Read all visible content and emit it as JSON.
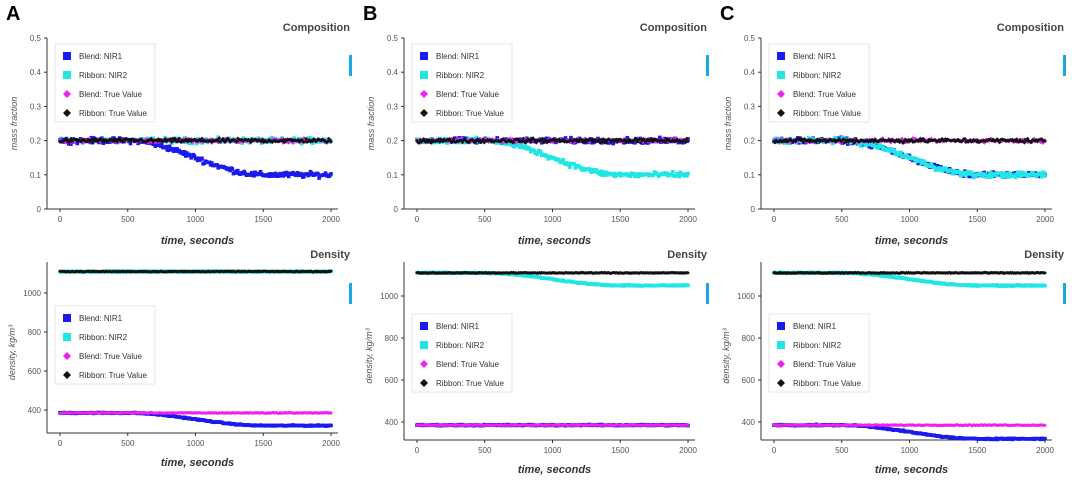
{
  "panels": [
    {
      "letter": "A",
      "composition_variant": "blend_drop",
      "density_variant": "blend_drop"
    },
    {
      "letter": "B",
      "composition_variant": "ribbon_drop",
      "density_variant": "ribbon_drop"
    },
    {
      "letter": "C",
      "composition_variant": "both_drop",
      "density_variant": "both_drop"
    }
  ],
  "legend_labels": [
    "Blend: NIR1",
    "Ribbon: NIR2",
    "Blend: True Value",
    "Ribbon: True Value"
  ],
  "colors": {
    "blend_nir": "#1a1aee",
    "ribbon_nir": "#22e5e5",
    "blend_true": "#ee22ee",
    "ribbon_true": "#111111",
    "side_bar": "#1aa7e6",
    "axis": "#333333"
  },
  "chart_data": [
    {
      "type": "scatter",
      "title": "Composition",
      "xlabel": "time, seconds",
      "ylabel": "mass fraction",
      "xlim": [
        0,
        2000
      ],
      "ylim": [
        0,
        0.5
      ],
      "x_ticks": [
        "0",
        "500",
        "1000",
        "1500",
        "2000"
      ],
      "y_ticks": [
        "0",
        "0.1",
        "0.2",
        "0.3",
        "0.4",
        "0.5"
      ],
      "series": [
        {
          "name": "Blend: NIR1",
          "profile": [
            [
              0,
              0.2
            ],
            [
              500,
              0.2
            ],
            [
              1500,
              0.1
            ],
            [
              2000,
              0.1
            ]
          ]
        },
        {
          "name": "Ribbon: NIR2",
          "profile": [
            [
              0,
              0.2
            ],
            [
              500,
              0.2
            ],
            [
              1500,
              0.1
            ],
            [
              2000,
              0.1
            ]
          ]
        },
        {
          "name": "Blend: True Value",
          "profile": [
            [
              0,
              0.2
            ],
            [
              2000,
              0.2
            ]
          ]
        },
        {
          "name": "Ribbon: True Value",
          "profile": [
            [
              0,
              0.2
            ],
            [
              2000,
              0.2
            ]
          ]
        }
      ]
    },
    {
      "type": "scatter",
      "title": "Density",
      "xlabel": "time, seconds",
      "ylabel": "density, kg/m³",
      "xlim": [
        0,
        2000
      ],
      "x_ticks": [
        "0",
        "500",
        "1000",
        "1500",
        "2000"
      ],
      "y_ticks_A": [
        "400",
        "600",
        "800",
        "1000"
      ],
      "y_ticks_B": [
        "400",
        "600",
        "800",
        "1000"
      ],
      "series": [
        {
          "name": "Blend: NIR1",
          "profile": [
            [
              0,
              385
            ],
            [
              500,
              385
            ],
            [
              1500,
              320
            ],
            [
              2000,
              320
            ]
          ]
        },
        {
          "name": "Ribbon: NIR2",
          "profile": [
            [
              0,
              1110
            ],
            [
              500,
              1110
            ],
            [
              1500,
              1050
            ],
            [
              2000,
              1050
            ]
          ]
        },
        {
          "name": "Blend: True Value",
          "profile": [
            [
              0,
              385
            ],
            [
              2000,
              385
            ]
          ]
        },
        {
          "name": "Ribbon: True Value",
          "profile": [
            [
              0,
              1110
            ],
            [
              2000,
              1110
            ]
          ]
        }
      ]
    }
  ]
}
